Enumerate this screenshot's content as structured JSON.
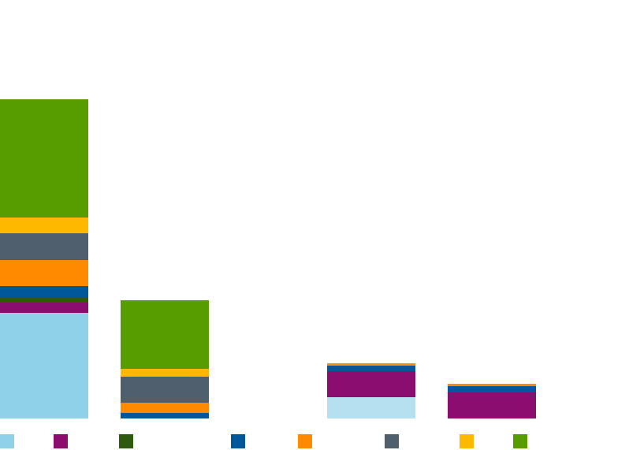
{
  "chart_data": {
    "type": "bar",
    "stacked": true,
    "categories": [
      "",
      "",
      "",
      ""
    ],
    "ylim": [
      0,
      410
    ],
    "grid": false,
    "legend": "bottom",
    "title": "",
    "xlabel": "",
    "ylabel": "",
    "series": [
      {
        "color": "#8ED1E8",
        "values": [
          134,
          0,
          0,
          0
        ]
      },
      {
        "color": "#B5E0F0",
        "values": [
          0,
          0,
          27,
          0
        ]
      },
      {
        "color": "#8B0E6E",
        "values": [
          13,
          0,
          33,
          33
        ]
      },
      {
        "color": "#2D5A0F",
        "values": [
          7,
          0,
          0,
          0
        ]
      },
      {
        "color": "#00589A",
        "values": [
          14,
          7,
          7,
          8
        ]
      },
      {
        "color": "#FF8A00",
        "values": [
          33,
          13,
          3,
          3
        ]
      },
      {
        "color": "#4F5F6D",
        "values": [
          34,
          33,
          0,
          0
        ]
      },
      {
        "color": "#FFB800",
        "values": [
          20,
          10,
          0,
          0
        ]
      },
      {
        "color": "#579D00",
        "values": [
          150,
          87,
          0,
          0
        ]
      }
    ]
  },
  "legend": {
    "items": [
      {
        "label": "",
        "color": "#8ED1E8"
      },
      {
        "label": "",
        "color": "#8B0E6E"
      },
      {
        "label": "",
        "color": "#2D5A0F"
      },
      {
        "label": "",
        "color": "#00589A"
      },
      {
        "label": "",
        "color": "#FF8A00"
      },
      {
        "label": "",
        "color": "#4F5F6D"
      },
      {
        "label": "",
        "color": "#FFB800"
      },
      {
        "label": "",
        "color": "#579D00"
      }
    ]
  }
}
